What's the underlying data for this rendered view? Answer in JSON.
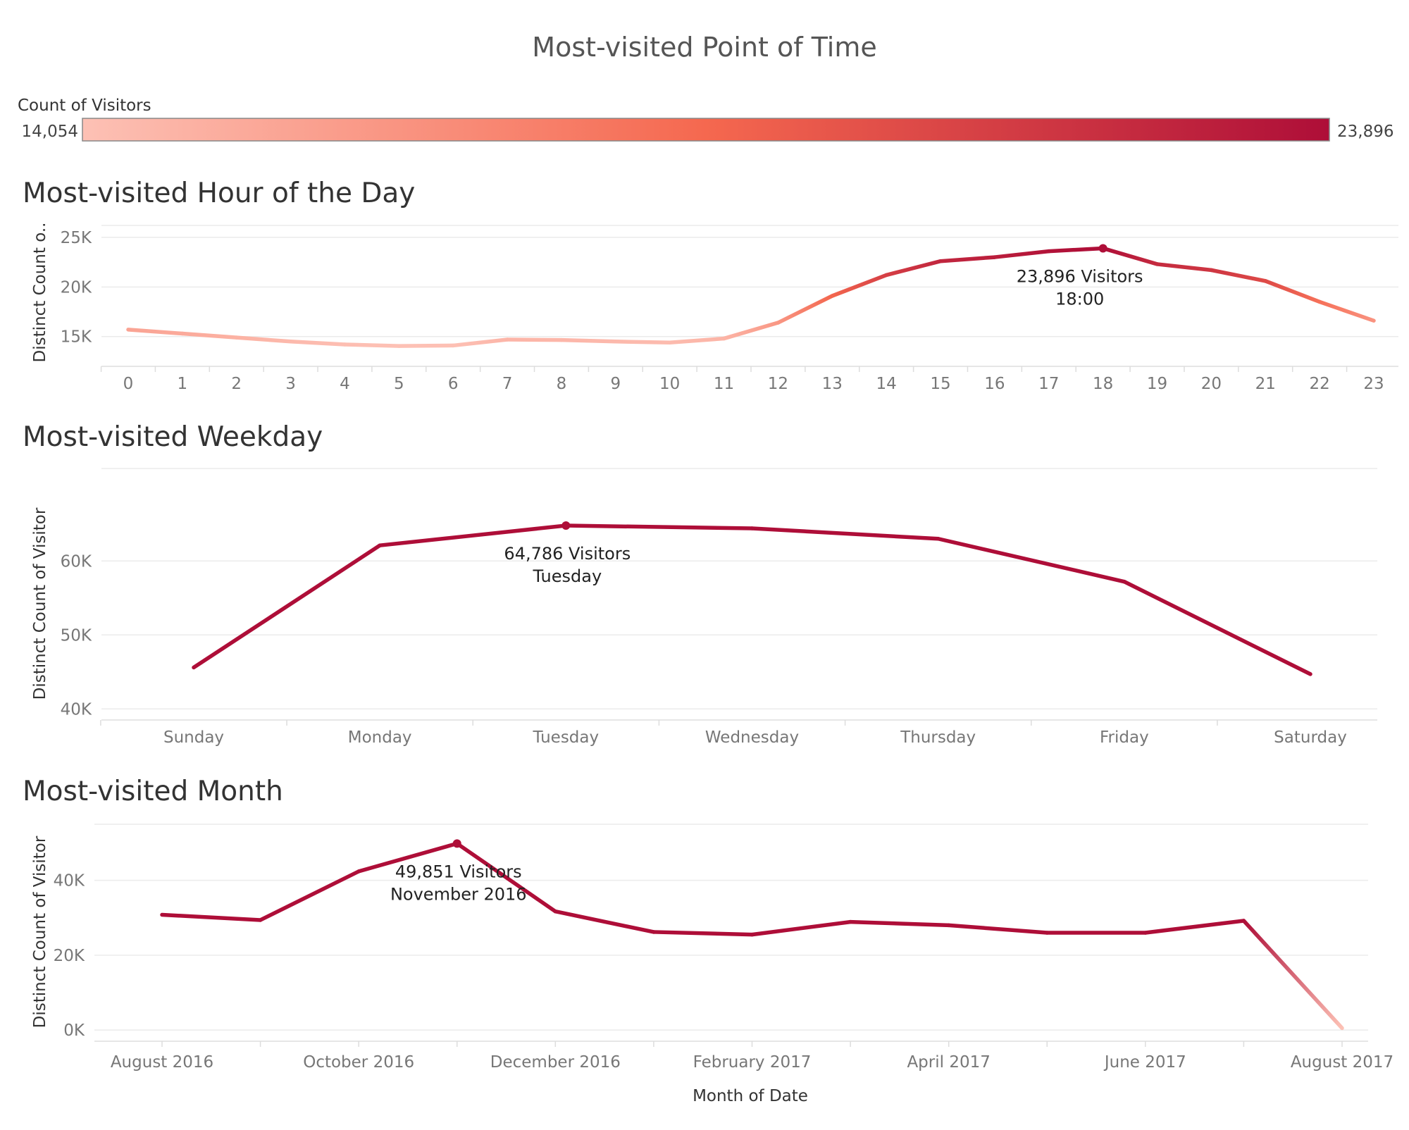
{
  "title": "Most-visited Point of Time",
  "legend": {
    "title": "Count of Visitors",
    "min_label": "14,054",
    "max_label": "23,896",
    "min_value": 14054,
    "max_value": 23896,
    "colors": [
      "#fdc1b5",
      "#f5684f",
      "#ae0e38"
    ]
  },
  "chart_data": [
    {
      "type": "line",
      "title": "Most-visited Hour of the Day",
      "ylabel": "Distinct Count o..",
      "xlabel": "",
      "categories": [
        "0",
        "1",
        "2",
        "3",
        "4",
        "5",
        "6",
        "7",
        "8",
        "9",
        "10",
        "11",
        "12",
        "13",
        "14",
        "15",
        "16",
        "17",
        "18",
        "19",
        "20",
        "21",
        "22",
        "23"
      ],
      "values": [
        15700,
        15300,
        14900,
        14500,
        14200,
        14054,
        14100,
        14700,
        14650,
        14500,
        14400,
        14800,
        16400,
        19100,
        21200,
        22600,
        23000,
        23600,
        23896,
        22300,
        21700,
        20600,
        18500,
        16600
      ],
      "ylim": [
        12000,
        26200
      ],
      "yticks": [
        15000,
        20000,
        25000
      ],
      "ytick_labels": [
        "15K",
        "20K",
        "25K"
      ],
      "grid": true,
      "peak": {
        "index": 18,
        "line1": "23,896 Visitors",
        "line2": "18:00"
      }
    },
    {
      "type": "line",
      "title": "Most-visited Weekday",
      "ylabel": "Distinct Count of Visitor",
      "xlabel": "",
      "categories": [
        "Sunday",
        "Monday",
        "Tuesday",
        "Wednesday",
        "Thursday",
        "Friday",
        "Saturday"
      ],
      "values": [
        45600,
        62100,
        64786,
        64400,
        63000,
        57200,
        44700
      ],
      "ylim": [
        38500,
        72500
      ],
      "yticks": [
        40000,
        50000,
        60000
      ],
      "ytick_labels": [
        "40K",
        "50K",
        "60K"
      ],
      "grid": true,
      "peak": {
        "index": 2,
        "line1": "64,786 Visitors",
        "line2": "Tuesday"
      }
    },
    {
      "type": "line",
      "title": "Most-visited Month",
      "ylabel": "Distinct Count of Visitor",
      "xlabel": "Month of Date",
      "categories": [
        "August 2016",
        "September 2016",
        "October 2016",
        "November 2016",
        "December 2016",
        "January 2017",
        "February 2017",
        "March 2017",
        "April 2017",
        "May 2017",
        "June 2017",
        "July 2017",
        "August 2017"
      ],
      "tick_labels": [
        "August 2016",
        "October 2016",
        "December 2016",
        "February 2017",
        "April 2017",
        "June 2017",
        "August 2017"
      ],
      "values": [
        30800,
        29400,
        42400,
        49851,
        31700,
        26200,
        25500,
        28900,
        28000,
        26000,
        26000,
        29200,
        500
      ],
      "ylim": [
        -3000,
        55000
      ],
      "yticks": [
        0,
        20000,
        40000
      ],
      "ytick_labels": [
        "0K",
        "20K",
        "40K"
      ],
      "grid": true,
      "peak": {
        "index": 3,
        "line1": "49,851 Visitors",
        "line2": "November 2016"
      }
    }
  ]
}
